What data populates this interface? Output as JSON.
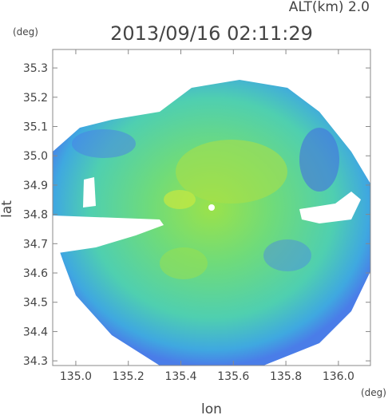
{
  "header": {
    "altitude": "ALT(km) 2.0",
    "y_unit": "(deg)",
    "title": "2013/09/16 02:11:29",
    "x_unit": "(deg)"
  },
  "axes": {
    "xlabel": "lon",
    "ylabel": "lat",
    "xlim": [
      134.912,
      136.122
    ],
    "ylim": [
      34.284,
      35.363
    ],
    "xticks": [
      {
        "value": 135.0,
        "label": "135.0"
      },
      135.2,
      135.4,
      135.6,
      135.8,
      {
        "value": 136.0,
        "label": "136.0"
      }
    ],
    "yticks": [
      34.3,
      34.4,
      34.5,
      34.6,
      34.7,
      34.8,
      34.9,
      {
        "value": 35.0,
        "label": "35.0"
      },
      35.1,
      35.2,
      35.3
    ]
  }
}
